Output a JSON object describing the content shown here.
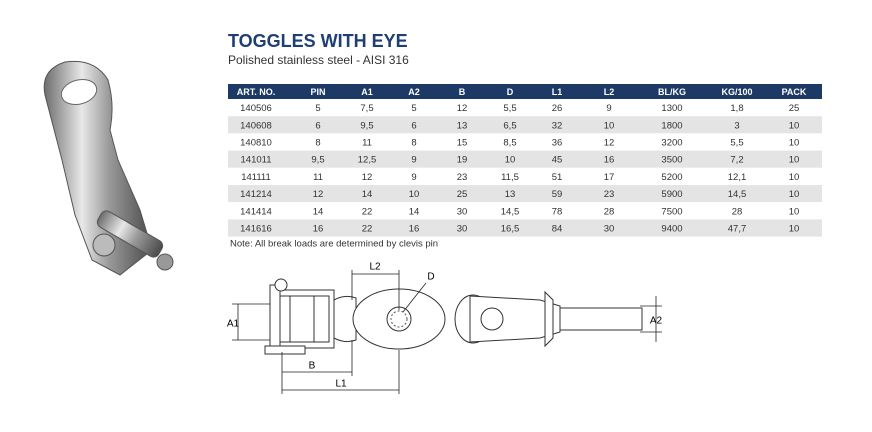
{
  "header": {
    "title": "TOGGLES WITH EYE",
    "subtitle": "Polished stainless steel - AISI 316"
  },
  "table": {
    "columns": [
      "ART. NO.",
      "PIN",
      "A1",
      "A2",
      "B",
      "D",
      "L1",
      "L2",
      "BL/KG",
      "KG/100",
      "PACK"
    ],
    "rows": [
      [
        "140506",
        "5",
        "7,5",
        "5",
        "12",
        "5,5",
        "26",
        "9",
        "1300",
        "1,8",
        "25"
      ],
      [
        "140608",
        "6",
        "9,5",
        "6",
        "13",
        "6,5",
        "32",
        "10",
        "1800",
        "3",
        "10"
      ],
      [
        "140810",
        "8",
        "11",
        "8",
        "15",
        "8,5",
        "36",
        "12",
        "3200",
        "5,5",
        "10"
      ],
      [
        "141011",
        "9,5",
        "12,5",
        "9",
        "19",
        "10",
        "45",
        "16",
        "3500",
        "7,2",
        "10"
      ],
      [
        "141111",
        "11",
        "12",
        "9",
        "23",
        "11,5",
        "51",
        "17",
        "5200",
        "12,1",
        "10"
      ],
      [
        "141214",
        "12",
        "14",
        "10",
        "25",
        "13",
        "59",
        "23",
        "5900",
        "14,5",
        "10"
      ],
      [
        "141414",
        "14",
        "22",
        "14",
        "30",
        "14,5",
        "78",
        "28",
        "7500",
        "28",
        "10"
      ],
      [
        "141616",
        "16",
        "22",
        "16",
        "30",
        "16,5",
        "84",
        "30",
        "9400",
        "47,7",
        "10"
      ]
    ]
  },
  "note": "Note: All break loads are determined by clevis pin",
  "diagram": {
    "labels": {
      "l2": "L2",
      "d": "D",
      "a1": "A1",
      "b": "B",
      "l1": "L1",
      "a2": "A2"
    }
  }
}
